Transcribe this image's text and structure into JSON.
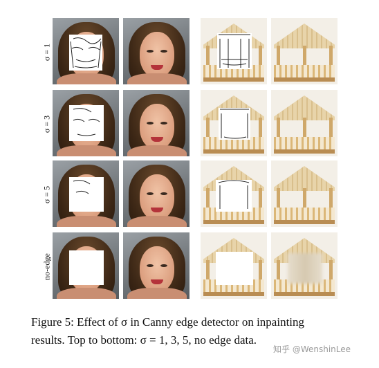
{
  "figure": {
    "row_labels": [
      "σ = 1",
      "σ = 3",
      "σ = 5",
      "no-edge"
    ],
    "columns": [
      "face-input",
      "face-result",
      "gazebo-input",
      "gazebo-result"
    ]
  },
  "caption": {
    "line1": "Figure 5: Effect of σ in Canny edge detector on inpainting",
    "line2": "results. Top to bottom: σ = 1, 3, 5, no edge data."
  },
  "watermark": "知乎 @WenshinLee"
}
